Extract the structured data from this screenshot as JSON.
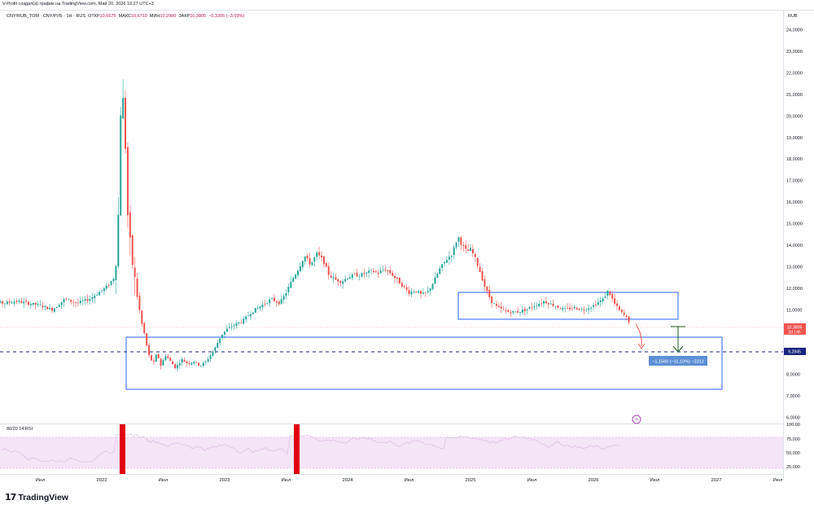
{
  "header": {
    "credit": "V-Profit создал(а) график на TradingView.com, Май 20, 2026 10:27 UTC+3",
    "currency": "RUB"
  },
  "symbol": {
    "name": "CNY/RUB_TOM · CNY/РУБ · 1Н · RUS",
    "open_label": "ОТКР",
    "open": "10,6675",
    "high_label": "МАКС",
    "high": "10,6710",
    "low_label": "МИН",
    "low": "10,2900",
    "close_label": "ЗАКР",
    "close": "10,3805",
    "change": "−0,3305 (−3,09%)"
  },
  "rsi": {
    "title": "80/20 14 RSI"
  },
  "price_tags": {
    "last_price": "10,3805",
    "countdown": "2d 14h",
    "target_price": "9,2845"
  },
  "measure": {
    "label": "−1,1560 (−11,10%) −2312"
  },
  "logo": {
    "mark": "17",
    "text": "TradingView"
  },
  "colors": {
    "up": "#26a69a",
    "down": "#ef5350",
    "box": "#2962ff",
    "rsi_band": "#f3e5f5",
    "rsi_line": "#e1bee7",
    "rsi_marker": "#e0000c",
    "measure": "#1565c0",
    "last_price_tag": "#ef5350"
  },
  "chart_data": {
    "type": "candlestick",
    "title": "CNY/RUB_TOM · CNY/РУБ · 1Н · RUS",
    "ylabel": "RUB",
    "ylim": [
      6.0,
      24.0
    ],
    "y_ticks": [
      "7,0000",
      "8,0000",
      "9,0000",
      "10,0000",
      "11,0000",
      "12,0000",
      "13,0000",
      "14,0000",
      "15,0000",
      "16,0000",
      "17,0000",
      "18,0000",
      "19,0000",
      "20,0000",
      "21,0000",
      "22,0000",
      "23,0000",
      "24,0000"
    ],
    "x_ticks": [
      {
        "label": "Июл",
        "t": 2021.5
      },
      {
        "label": "2022",
        "t": 2022.0
      },
      {
        "label": "Июл",
        "t": 2022.5
      },
      {
        "label": "2023",
        "t": 2023.0
      },
      {
        "label": "Июл",
        "t": 2023.5
      },
      {
        "label": "2024",
        "t": 2024.0
      },
      {
        "label": "Июл",
        "t": 2024.5
      },
      {
        "label": "2025",
        "t": 2025.0
      },
      {
        "label": "Июл",
        "t": 2025.5
      },
      {
        "label": "2026",
        "t": 2026.0
      },
      {
        "label": "Июл",
        "t": 2026.5
      },
      {
        "label": "2027",
        "t": 2027.0
      },
      {
        "label": "Июл",
        "t": 2027.5
      }
    ],
    "price_path": [
      [
        2021.0,
        11.5
      ],
      [
        2021.05,
        11.7
      ],
      [
        2021.1,
        11.4
      ],
      [
        2021.2,
        11.3
      ],
      [
        2021.3,
        11.4
      ],
      [
        2021.4,
        11.3
      ],
      [
        2021.5,
        11.2
      ],
      [
        2021.6,
        11.0
      ],
      [
        2021.7,
        11.5
      ],
      [
        2021.8,
        11.3
      ],
      [
        2021.9,
        11.5
      ],
      [
        2022.0,
        11.9
      ],
      [
        2022.05,
        12.1
      ],
      [
        2022.1,
        12.5
      ],
      [
        2022.13,
        14.0
      ],
      [
        2022.15,
        20.0
      ],
      [
        2022.17,
        21.0
      ],
      [
        2022.19,
        19.0
      ],
      [
        2022.21,
        15.5
      ],
      [
        2022.24,
        13.5
      ],
      [
        2022.28,
        12.0
      ],
      [
        2022.32,
        10.5
      ],
      [
        2022.35,
        9.8
      ],
      [
        2022.38,
        8.9
      ],
      [
        2022.42,
        8.5
      ],
      [
        2022.45,
        9.0
      ],
      [
        2022.48,
        8.4
      ],
      [
        2022.52,
        8.9
      ],
      [
        2022.56,
        8.6
      ],
      [
        2022.6,
        8.3
      ],
      [
        2022.65,
        8.7
      ],
      [
        2022.7,
        8.5
      ],
      [
        2022.75,
        8.6
      ],
      [
        2022.8,
        8.4
      ],
      [
        2022.85,
        8.6
      ],
      [
        2022.92,
        9.2
      ],
      [
        2022.97,
        9.8
      ],
      [
        2023.02,
        10.1
      ],
      [
        2023.08,
        10.3
      ],
      [
        2023.15,
        10.5
      ],
      [
        2023.22,
        10.9
      ],
      [
        2023.3,
        11.2
      ],
      [
        2023.38,
        11.5
      ],
      [
        2023.45,
        11.3
      ],
      [
        2023.5,
        11.8
      ],
      [
        2023.55,
        12.4
      ],
      [
        2023.6,
        12.9
      ],
      [
        2023.65,
        13.5
      ],
      [
        2023.7,
        13.1
      ],
      [
        2023.75,
        13.6
      ],
      [
        2023.8,
        13.3
      ],
      [
        2023.85,
        12.6
      ],
      [
        2023.9,
        12.4
      ],
      [
        2023.95,
        12.3
      ],
      [
        2024.0,
        12.5
      ],
      [
        2024.05,
        12.6
      ],
      [
        2024.1,
        12.6
      ],
      [
        2024.15,
        12.7
      ],
      [
        2024.2,
        12.8
      ],
      [
        2024.25,
        12.7
      ],
      [
        2024.3,
        12.9
      ],
      [
        2024.35,
        12.7
      ],
      [
        2024.4,
        12.4
      ],
      [
        2024.45,
        12.1
      ],
      [
        2024.5,
        11.8
      ],
      [
        2024.55,
        11.9
      ],
      [
        2024.6,
        11.7
      ],
      [
        2024.65,
        11.8
      ],
      [
        2024.7,
        12.3
      ],
      [
        2024.75,
        12.9
      ],
      [
        2024.8,
        13.3
      ],
      [
        2024.85,
        13.6
      ],
      [
        2024.9,
        14.4
      ],
      [
        2024.93,
        14.0
      ],
      [
        2024.97,
        13.7
      ],
      [
        2025.0,
        13.8
      ],
      [
        2025.03,
        13.5
      ],
      [
        2025.07,
        12.9
      ],
      [
        2025.12,
        12.0
      ],
      [
        2025.17,
        11.4
      ],
      [
        2025.22,
        11.1
      ],
      [
        2025.3,
        10.9
      ],
      [
        2025.38,
        10.9
      ],
      [
        2025.45,
        11.0
      ],
      [
        2025.52,
        11.2
      ],
      [
        2025.6,
        11.4
      ],
      [
        2025.68,
        11.2
      ],
      [
        2025.76,
        11.0
      ],
      [
        2025.84,
        11.1
      ],
      [
        2025.92,
        11.0
      ],
      [
        2026.0,
        11.2
      ],
      [
        2026.08,
        11.5
      ],
      [
        2026.12,
        11.9
      ],
      [
        2026.17,
        11.3
      ],
      [
        2026.22,
        10.9
      ],
      [
        2026.26,
        10.7
      ],
      [
        2026.3,
        10.38
      ]
    ]
  }
}
